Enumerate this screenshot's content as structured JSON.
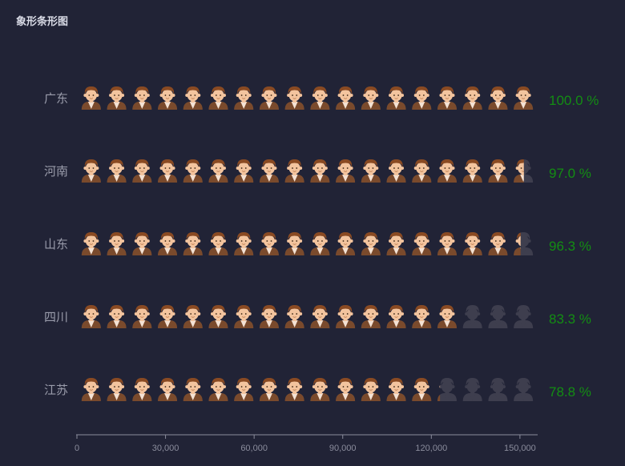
{
  "title": "象形条形图",
  "chart_data": {
    "type": "bar",
    "orientation": "horizontal",
    "pictorial": true,
    "title": "象形条形图",
    "categories": [
      "广东",
      "河南",
      "山东",
      "四川",
      "江苏"
    ],
    "values": [
      156000,
      151320,
      150228,
      129948,
      122928
    ],
    "percent_labels": [
      "100.0 %",
      "97.0 %",
      "96.3 %",
      "83.3 %",
      "78.8 %"
    ],
    "xlim": [
      0,
      156000
    ],
    "xticks": [
      0,
      30000,
      60000,
      90000,
      120000,
      150000
    ],
    "xtick_labels": [
      "0",
      "30,000",
      "60,000",
      "90,000",
      "120,000",
      "150,000"
    ],
    "symbols_per_row": 18,
    "grid": false,
    "colors": {
      "background": "#212336",
      "label": "#9a9cab",
      "percent": "#138d13",
      "axis": "#8a8c9c",
      "hair": "#8a4a22",
      "face": "#f3c49e",
      "body": "#7a4a2c",
      "shirt": "#f4e2d4",
      "ghost": "#3e3e4e"
    }
  }
}
